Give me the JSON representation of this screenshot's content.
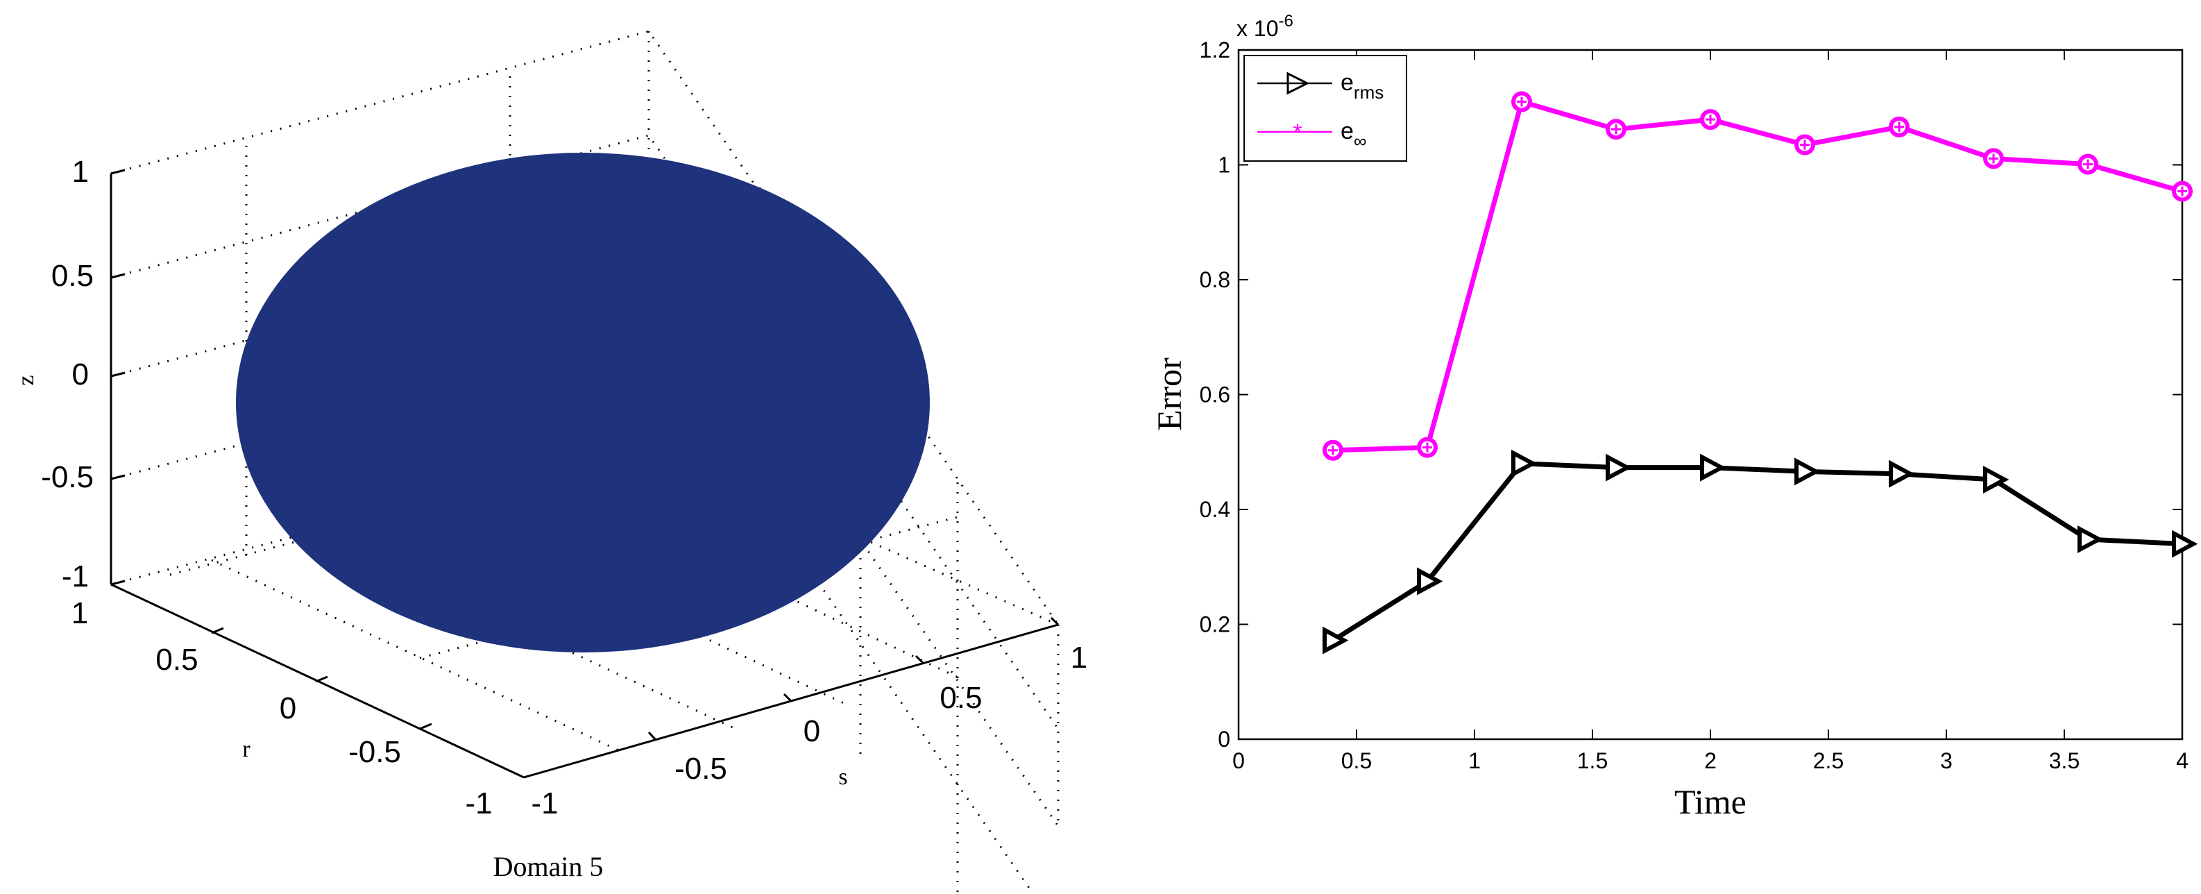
{
  "chart_data": [
    {
      "type": "surface3d",
      "caption": "Domain 5",
      "xlabel": "s",
      "ylabel": "r",
      "zlabel": "z",
      "s_ticks": [
        "-1",
        "-0.5",
        "0",
        "0.5",
        "1"
      ],
      "r_ticks": [
        "-1",
        "-0.5",
        "0",
        "0.5",
        "1"
      ],
      "z_ticks": [
        "1",
        "0.5",
        "0",
        "-0.5",
        "-1"
      ],
      "xlim": [
        -1,
        1
      ],
      "ylim": [
        -1,
        1
      ],
      "zlim": [
        -1,
        1
      ],
      "surface_color": "#1f327c",
      "grid": true,
      "shape": "disk"
    },
    {
      "type": "line",
      "xlabel": "Time",
      "ylabel": "Error",
      "exponent_label": "x 10",
      "exponent_power": "-6",
      "xlim": [
        0,
        4
      ],
      "ylim": [
        0,
        1.2
      ],
      "x_ticks": [
        "0",
        "0.5",
        "1",
        "1.5",
        "2",
        "2.5",
        "3",
        "3.5",
        "4"
      ],
      "y_ticks": [
        "0",
        "0.2",
        "0.4",
        "0.6",
        "0.8",
        "1",
        "1.2"
      ],
      "grid": false,
      "legend_position": "top-left",
      "x": [
        0.4,
        0.8,
        1.2,
        1.6,
        2.0,
        2.4,
        2.8,
        3.2,
        3.6,
        4.0
      ],
      "series": [
        {
          "name": "e",
          "subscript": "rms",
          "color": "#000000",
          "marker": "triangle-right",
          "values": [
            0.172,
            0.275,
            0.48,
            0.473,
            0.473,
            0.466,
            0.462,
            0.452,
            0.348,
            0.34
          ]
        },
        {
          "name": "e",
          "subscript": "∞",
          "color": "#ff00ff",
          "marker": "circle-star",
          "values": [
            0.503,
            0.508,
            1.11,
            1.062,
            1.079,
            1.035,
            1.066,
            1.011,
            1.001,
            0.954
          ]
        }
      ]
    }
  ]
}
